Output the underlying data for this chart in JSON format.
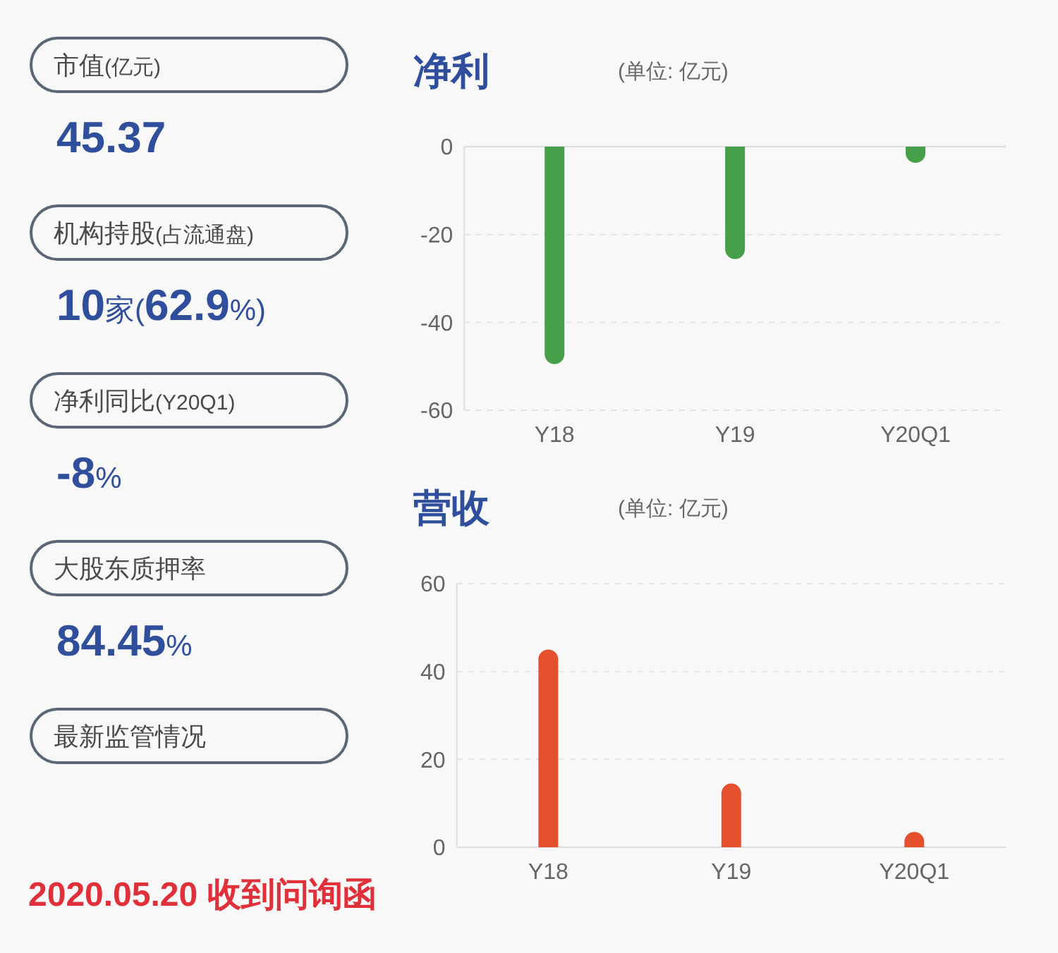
{
  "chart_data": [
    {
      "type": "other",
      "categories": [
        "市值(亿元)",
        "机构持股(占流通盘)",
        "净利同比(Y20Q1)",
        "大股东质押率",
        "最新监管情况"
      ],
      "annotations": [
        "45.37",
        "10家(62.9%)",
        "-8%",
        "84.45%",
        "2020.05.20 收到问询函"
      ],
      "colors": [
        "#2f4f9c",
        "#2f4f9c",
        "#2f4f9c",
        "#2f4f9c",
        "#e0303a"
      ]
    },
    {
      "type": "bar",
      "title": "净利",
      "subtitle": "(单位: 亿元)",
      "categories": [
        "Y18",
        "Y19",
        "Y20Q1"
      ],
      "values": [
        -49.5,
        -25.6,
        -3.7
      ],
      "color": "#45a049",
      "ylim": [
        -60,
        0
      ],
      "yticks": [
        -60,
        -40,
        -20,
        0
      ],
      "grid": "y"
    },
    {
      "type": "bar",
      "title": "营收",
      "subtitle": "(单位: 亿元)",
      "categories": [
        "Y18",
        "Y19",
        "Y20Q1"
      ],
      "values": [
        45,
        14.5,
        3.5
      ],
      "color": "#e4512c",
      "ylim": [
        0,
        60
      ],
      "yticks": [
        0,
        20,
        40,
        60
      ],
      "grid": "y"
    }
  ]
}
